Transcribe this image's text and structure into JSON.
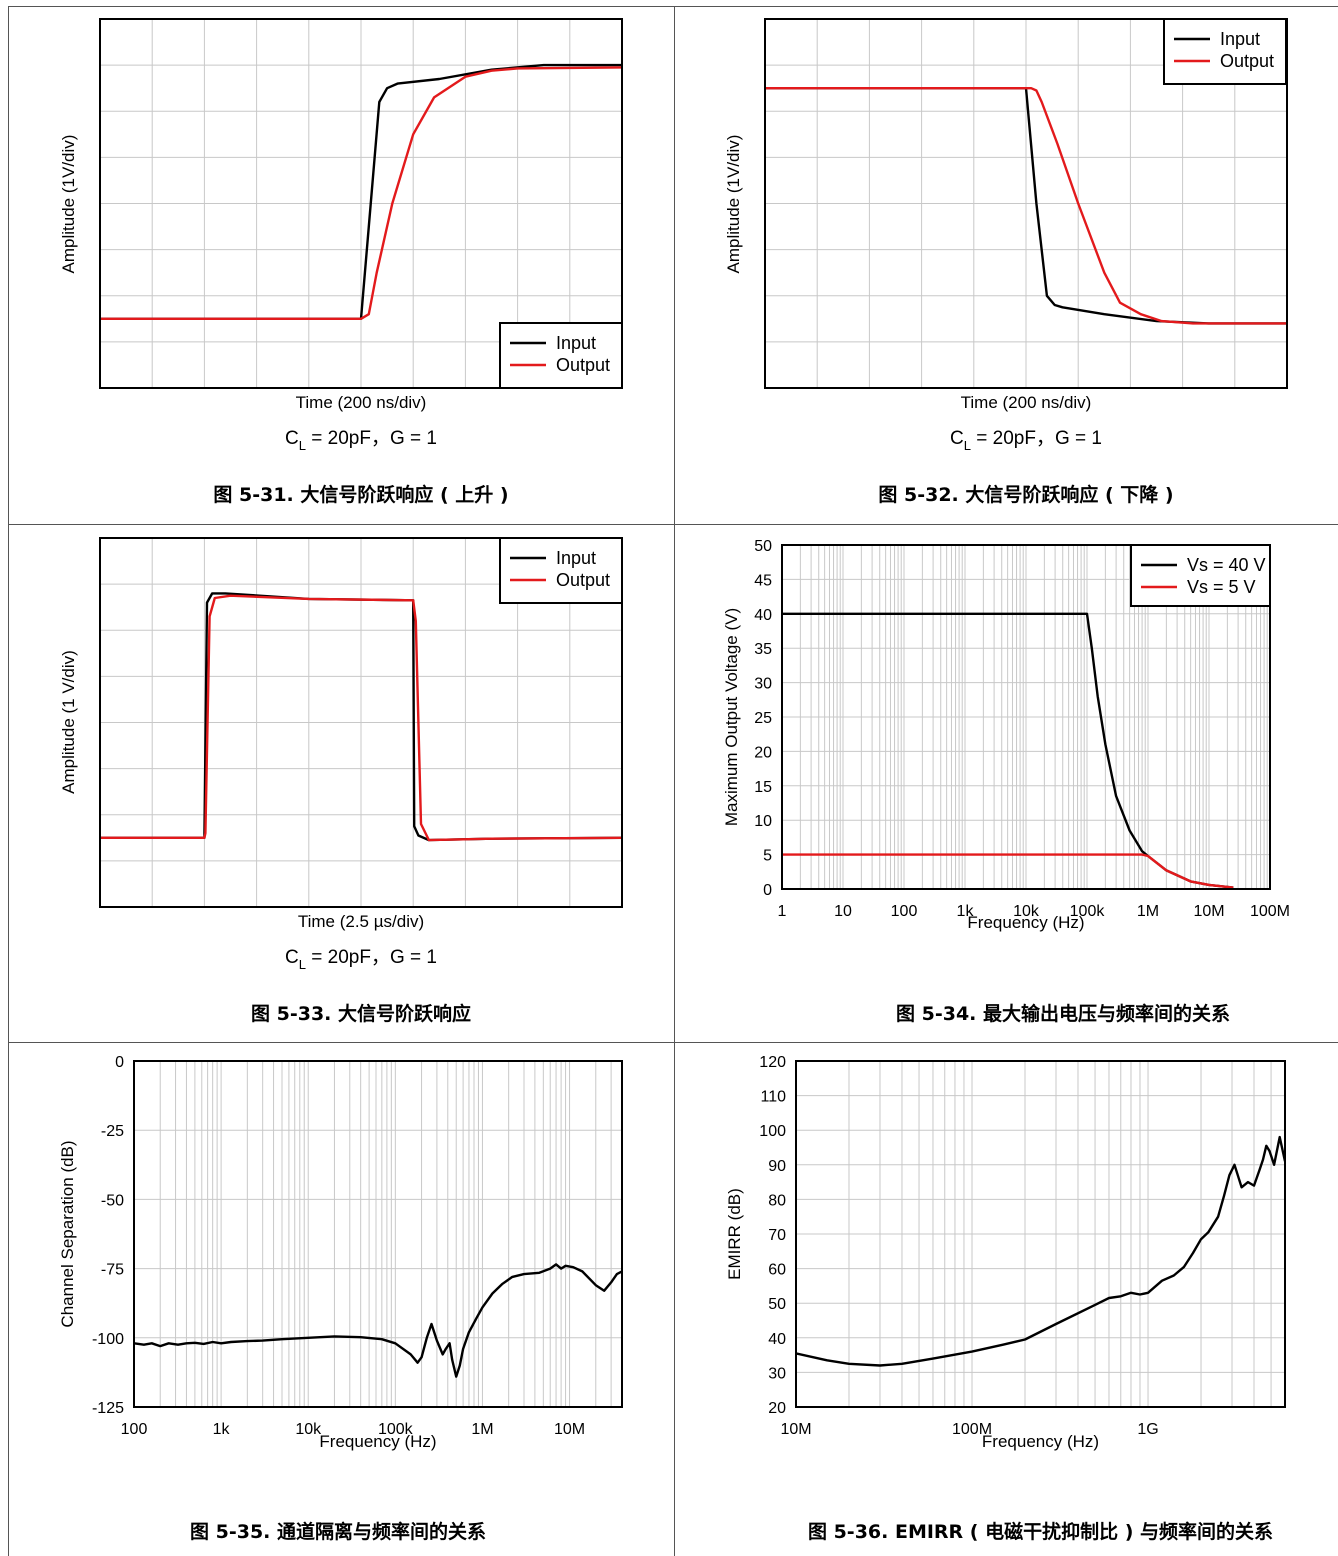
{
  "colors": {
    "input": "#000000",
    "output": "#e31a1c",
    "grid": "#c8c8c8",
    "cell_border": "#555555"
  },
  "chart_data": [
    {
      "id": "fig-5-31",
      "type": "line",
      "caption": "图 5-31. 大信号阶跃响应 ( 上升 )",
      "condition": {
        "prefix": "C",
        "sub": "L",
        "suffix": " = 20pF，G = 1"
      },
      "xlabel": "Time (200 ns/div)",
      "ylabel": "Amplitude (1V/div)",
      "x_divisions": 10,
      "y_divisions": 8,
      "xlim": [
        0,
        10
      ],
      "ylim": [
        0,
        8
      ],
      "legend": {
        "position": "bottom-right",
        "entries": [
          "Input",
          "Output"
        ]
      },
      "series": [
        {
          "name": "Input",
          "color": "#000000",
          "x": [
            0,
            5.0,
            5.15,
            5.35,
            5.5,
            5.7,
            6.5,
            7.5,
            8.5,
            10
          ],
          "y": [
            1.5,
            1.5,
            3.5,
            6.2,
            6.5,
            6.6,
            6.7,
            6.9,
            7.0,
            7.0
          ]
        },
        {
          "name": "Output",
          "color": "#e31a1c",
          "x": [
            0,
            5.0,
            5.15,
            5.3,
            5.6,
            6.0,
            6.4,
            7.0,
            7.5,
            8.0,
            10
          ],
          "y": [
            1.5,
            1.5,
            1.6,
            2.5,
            4.0,
            5.5,
            6.3,
            6.75,
            6.88,
            6.93,
            6.95
          ]
        }
      ]
    },
    {
      "id": "fig-5-32",
      "type": "line",
      "caption": "图 5-32. 大信号阶跃响应 ( 下降 )",
      "condition": {
        "prefix": "C",
        "sub": "L",
        "suffix": " = 20pF，G = 1"
      },
      "xlabel": "Time (200 ns/div)",
      "ylabel": "Amplitude (1V/div)",
      "x_divisions": 10,
      "y_divisions": 8,
      "xlim": [
        0,
        10
      ],
      "ylim": [
        0,
        8
      ],
      "legend": {
        "position": "top-right",
        "entries": [
          "Input",
          "Output"
        ]
      },
      "series": [
        {
          "name": "Input",
          "color": "#000000",
          "x": [
            0,
            5.0,
            5.2,
            5.4,
            5.55,
            5.7,
            6.5,
            7.5,
            8.5,
            10
          ],
          "y": [
            6.5,
            6.5,
            4.0,
            2.0,
            1.8,
            1.75,
            1.6,
            1.45,
            1.4,
            1.4
          ]
        },
        {
          "name": "Output",
          "color": "#e31a1c",
          "x": [
            0,
            5.0,
            5.1,
            5.2,
            5.3,
            5.6,
            6.0,
            6.5,
            6.8,
            7.2,
            7.6,
            8.2,
            10
          ],
          "y": [
            6.5,
            6.5,
            6.5,
            6.45,
            6.2,
            5.3,
            4.0,
            2.5,
            1.85,
            1.6,
            1.45,
            1.4,
            1.4
          ]
        }
      ]
    },
    {
      "id": "fig-5-33",
      "type": "line",
      "caption": "图 5-33. 大信号阶跃响应",
      "condition": {
        "prefix": "C",
        "sub": "L",
        "suffix": " = 20pF，G = 1"
      },
      "xlabel": "Time (2.5 µs/div)",
      "ylabel": "Amplitude (1 V/div)",
      "x_divisions": 10,
      "y_divisions": 8,
      "xlim": [
        0,
        10
      ],
      "ylim": [
        0,
        8
      ],
      "legend": {
        "position": "top-right",
        "entries": [
          "Input",
          "Output"
        ]
      },
      "series": [
        {
          "name": "Input",
          "color": "#000000",
          "x": [
            0,
            2.0,
            2.05,
            2.15,
            2.4,
            4.0,
            6.0,
            6.02,
            6.1,
            6.3,
            7.5,
            10
          ],
          "y": [
            1.5,
            1.5,
            6.6,
            6.8,
            6.8,
            6.68,
            6.65,
            1.75,
            1.55,
            1.45,
            1.48,
            1.5
          ]
        },
        {
          "name": "Output",
          "color": "#e31a1c",
          "x": [
            0,
            2.0,
            2.02,
            2.1,
            2.2,
            2.5,
            4.0,
            6.0,
            6.05,
            6.15,
            6.3,
            7.5,
            10
          ],
          "y": [
            1.5,
            1.5,
            1.6,
            6.3,
            6.7,
            6.75,
            6.68,
            6.65,
            6.2,
            1.8,
            1.45,
            1.48,
            1.5
          ]
        }
      ]
    },
    {
      "id": "fig-5-34",
      "type": "line",
      "caption": "图 5-34. 最大输出电压与频率间的关系",
      "xlabel": "Frequency (Hz)",
      "ylabel": "Maximum Output Voltage (V)",
      "xscale": "log",
      "xlim": [
        1,
        100000000
      ],
      "ylim": [
        0,
        50
      ],
      "xticks": [
        1,
        10,
        100,
        1000,
        10000,
        100000,
        1000000,
        10000000,
        100000000
      ],
      "xtick_labels": [
        "1",
        "10",
        "100",
        "1k",
        "10k",
        "100k",
        "1M",
        "10M",
        "100M"
      ],
      "yticks": [
        0,
        5,
        10,
        15,
        20,
        25,
        30,
        35,
        40,
        45,
        50
      ],
      "legend": {
        "position": "top-right",
        "entries": [
          "Vs = 40 V",
          "Vs = 5 V"
        ]
      },
      "series": [
        {
          "name": "Vs = 40 V",
          "color": "#000000",
          "x": [
            1,
            100000,
            120000,
            150000,
            200000,
            300000,
            500000,
            800000,
            1000000,
            2000000,
            5000000,
            10000000,
            20000000,
            25000000
          ],
          "y": [
            40,
            40,
            35,
            28,
            21,
            13.5,
            8.5,
            5.5,
            4.8,
            2.7,
            1.1,
            0.6,
            0.3,
            0.2
          ]
        },
        {
          "name": "Vs = 5 V",
          "color": "#e31a1c",
          "x": [
            1,
            800000,
            1000000,
            2000000,
            5000000,
            10000000,
            20000000,
            25000000
          ],
          "y": [
            5,
            5,
            4.8,
            2.7,
            1.1,
            0.6,
            0.3,
            0.2
          ]
        }
      ]
    },
    {
      "id": "fig-5-35",
      "type": "line",
      "caption": "图 5-35. 通道隔离与频率间的关系",
      "xlabel": "Frequency (Hz)",
      "ylabel": "Channel Separation (dB)",
      "xscale": "log",
      "xlim": [
        100,
        40000000
      ],
      "ylim": [
        -125,
        0
      ],
      "xticks": [
        100,
        1000,
        10000,
        100000,
        1000000,
        10000000
      ],
      "xtick_labels": [
        "100",
        "1k",
        "10k",
        "100k",
        "1M",
        "10M"
      ],
      "yticks": [
        -125,
        -100,
        -75,
        -50,
        -25,
        0
      ],
      "series": [
        {
          "name": "",
          "color": "#000000",
          "x": [
            100,
            130,
            160,
            200,
            250,
            320,
            400,
            500,
            630,
            800,
            1000,
            1300,
            2000,
            3000,
            5000,
            10000,
            20000,
            40000,
            70000,
            100000,
            150000,
            180000,
            200000,
            230000,
            260000,
            300000,
            350000,
            380000,
            420000,
            450000,
            500000,
            550000,
            600000,
            700000,
            850000,
            1000000,
            1300000,
            1700000,
            2200000,
            3000000,
            4500000,
            6000000,
            7000000,
            8000000,
            9000000,
            11000000,
            14000000,
            20000000,
            25000000,
            30000000,
            35000000,
            40000000
          ],
          "y": [
            -102,
            -102.5,
            -102,
            -103,
            -102,
            -102.5,
            -102,
            -101.8,
            -102.2,
            -101.5,
            -102,
            -101.5,
            -101.2,
            -101,
            -100.5,
            -100,
            -99.5,
            -99.8,
            -100.5,
            -102,
            -106,
            -109,
            -107,
            -100,
            -95,
            -101,
            -106,
            -104,
            -102,
            -108,
            -114,
            -110,
            -104,
            -98,
            -93,
            -89,
            -84,
            -80.5,
            -78,
            -77,
            -76.5,
            -75,
            -73.5,
            -75,
            -74,
            -74.5,
            -76,
            -81,
            -83,
            -80,
            -77,
            -76
          ]
        }
      ]
    },
    {
      "id": "fig-5-36",
      "type": "line",
      "caption": "图 5-36. EMIRR ( 电磁干扰抑制比 ) 与频率间的关系",
      "xlabel": "Frequency (Hz)",
      "ylabel": "EMIRR (dB)",
      "xscale": "log",
      "xlim": [
        10000000,
        6000000000
      ],
      "ylim": [
        20,
        120
      ],
      "xticks": [
        10000000,
        100000000,
        1000000000
      ],
      "xtick_labels": [
        "10M",
        "100M",
        "1G"
      ],
      "yticks": [
        20,
        30,
        40,
        50,
        60,
        70,
        80,
        90,
        100,
        110,
        120
      ],
      "series": [
        {
          "name": "",
          "color": "#000000",
          "x": [
            10000000,
            15000000,
            20000000,
            30000000,
            40000000,
            60000000,
            100000000,
            150000000,
            200000000,
            300000000,
            500000000,
            600000000,
            700000000,
            800000000,
            900000000,
            1000000000,
            1200000000,
            1400000000,
            1600000000,
            1800000000,
            2000000000,
            2200000000,
            2500000000,
            2700000000,
            2900000000,
            3100000000,
            3400000000,
            3700000000,
            4000000000,
            4300000000,
            4500000000,
            4700000000,
            4900000000,
            5200000000,
            5600000000,
            6000000000
          ],
          "y": [
            35.5,
            33.5,
            32.5,
            32,
            32.5,
            34,
            36,
            38,
            39.5,
            44,
            49.5,
            51.5,
            52,
            53,
            52.5,
            53,
            56.5,
            58,
            60.5,
            64.5,
            68.5,
            70.5,
            75,
            81,
            87,
            90,
            83.5,
            85,
            84,
            88.5,
            91.5,
            95.5,
            94,
            90,
            98,
            91
          ]
        }
      ]
    }
  ]
}
